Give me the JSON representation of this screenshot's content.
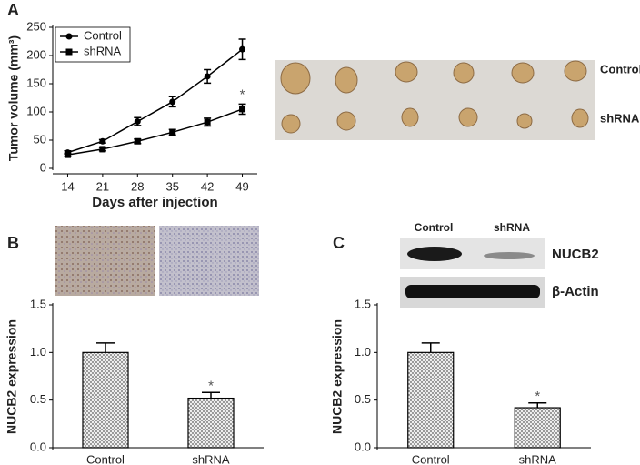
{
  "chart_data": [
    {
      "type": "line",
      "label": "A",
      "x": [
        14,
        21,
        28,
        35,
        42,
        49
      ],
      "xlim": [
        11,
        52
      ],
      "xticks": [
        14,
        21,
        28,
        35,
        42,
        49
      ],
      "ylim": [
        0,
        250
      ],
      "yticks": [
        0,
        50,
        100,
        150,
        200,
        250
      ],
      "x_label": "Days after injection",
      "y_label": "Tumor volume (mm³)",
      "legend": "upper left",
      "series": [
        {
          "name": "Control",
          "color": "#000000",
          "marker": "circle",
          "values": [
            28,
            48,
            83,
            118,
            163,
            211
          ],
          "errors": [
            3,
            3,
            7,
            9,
            12,
            18
          ]
        },
        {
          "name": "shRNA",
          "color": "#000000",
          "marker": "square",
          "values": [
            24,
            34,
            48,
            64,
            82,
            105
          ],
          "errors": [
            3,
            3,
            4,
            5,
            7,
            9
          ],
          "significance": [
            null,
            null,
            null,
            null,
            null,
            "*"
          ]
        }
      ],
      "image_labels": [
        "Control",
        "shRNA"
      ]
    },
    {
      "type": "bar",
      "label": "B",
      "categories": [
        "Control",
        "shRNA"
      ],
      "values": [
        1.0,
        0.52
      ],
      "errors": [
        0.1,
        0.06
      ],
      "significance": [
        null,
        "*"
      ],
      "color": "#555555",
      "ylim": [
        0,
        1.5
      ],
      "yticks": [
        {
          "value": 0,
          "label": "0.0"
        },
        0.5,
        {
          "value": 1,
          "label": "1.0"
        },
        1.5
      ],
      "y_label": "NUCB2 expression"
    },
    {
      "type": "bar",
      "label": "C",
      "categories": [
        "Control",
        "shRNA"
      ],
      "values": [
        1.0,
        0.42
      ],
      "errors": [
        0.1,
        0.05
      ],
      "significance": [
        null,
        "*"
      ],
      "color": "#555555",
      "ylim": [
        0,
        1.5
      ],
      "yticks": [
        {
          "value": 0,
          "label": "0.0"
        },
        0.5,
        {
          "value": 1,
          "label": "1.0"
        },
        1.5
      ],
      "y_label": "NUCB2 expression",
      "blot_columns": [
        "Control",
        "shRNA"
      ],
      "blot_rows": [
        "NUCB2",
        "β-Actin"
      ]
    }
  ]
}
